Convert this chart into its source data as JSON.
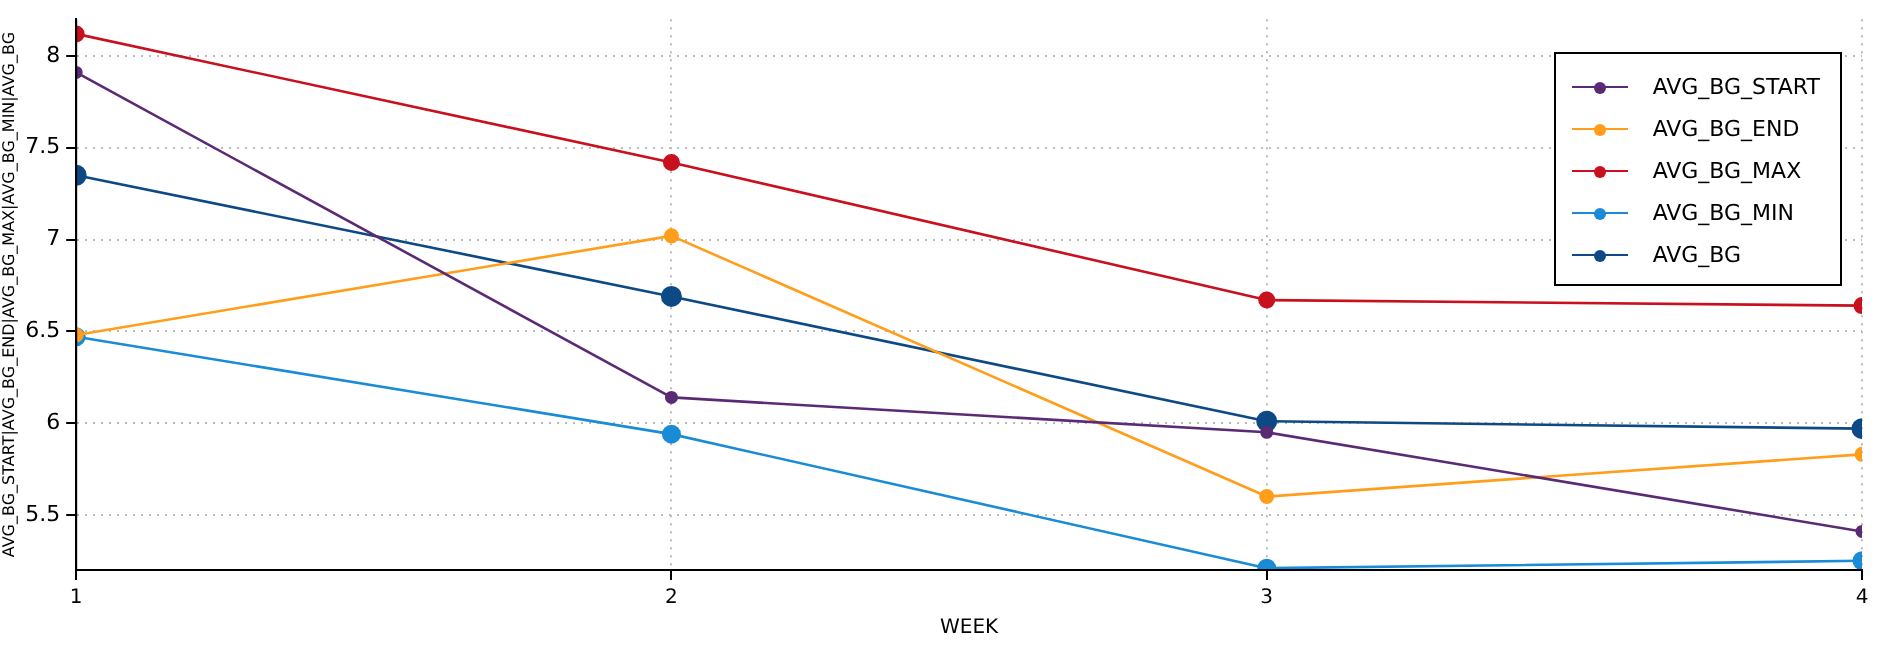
{
  "chart_data": {
    "type": "line",
    "xlabel": "WEEK",
    "ylabel": "AVG_BG_START|AVG_BG_END|AVG_BG_MAX|AVG_BG_MIN|AVG_BG",
    "x": [
      1,
      2,
      3,
      4
    ],
    "series": [
      {
        "name": "AVG_BG_START",
        "color": "#5b2a75",
        "values": [
          7.91,
          6.14,
          5.95,
          5.41
        ]
      },
      {
        "name": "AVG_BG_END",
        "color": "#ff9e1b",
        "values": [
          6.48,
          7.02,
          5.6,
          5.83
        ]
      },
      {
        "name": "AVG_BG_MAX",
        "color": "#c8101e",
        "values": [
          8.12,
          7.42,
          6.67,
          6.64
        ]
      },
      {
        "name": "AVG_BG_MIN",
        "color": "#1a8bd6",
        "values": [
          6.47,
          5.94,
          5.21,
          5.25
        ]
      },
      {
        "name": "AVG_BG",
        "color": "#0d4a85",
        "values": [
          7.35,
          6.69,
          6.01,
          5.97
        ]
      }
    ],
    "xlim": [
      1,
      4
    ],
    "xticks": [
      1,
      2,
      3,
      4
    ],
    "ylim": [
      5.2,
      8.2
    ],
    "yticks": [
      5.5,
      6,
      6.5,
      7,
      7.5,
      8
    ],
    "grid": true,
    "legend": "top right",
    "marker": "circle",
    "line_style": "solid"
  }
}
